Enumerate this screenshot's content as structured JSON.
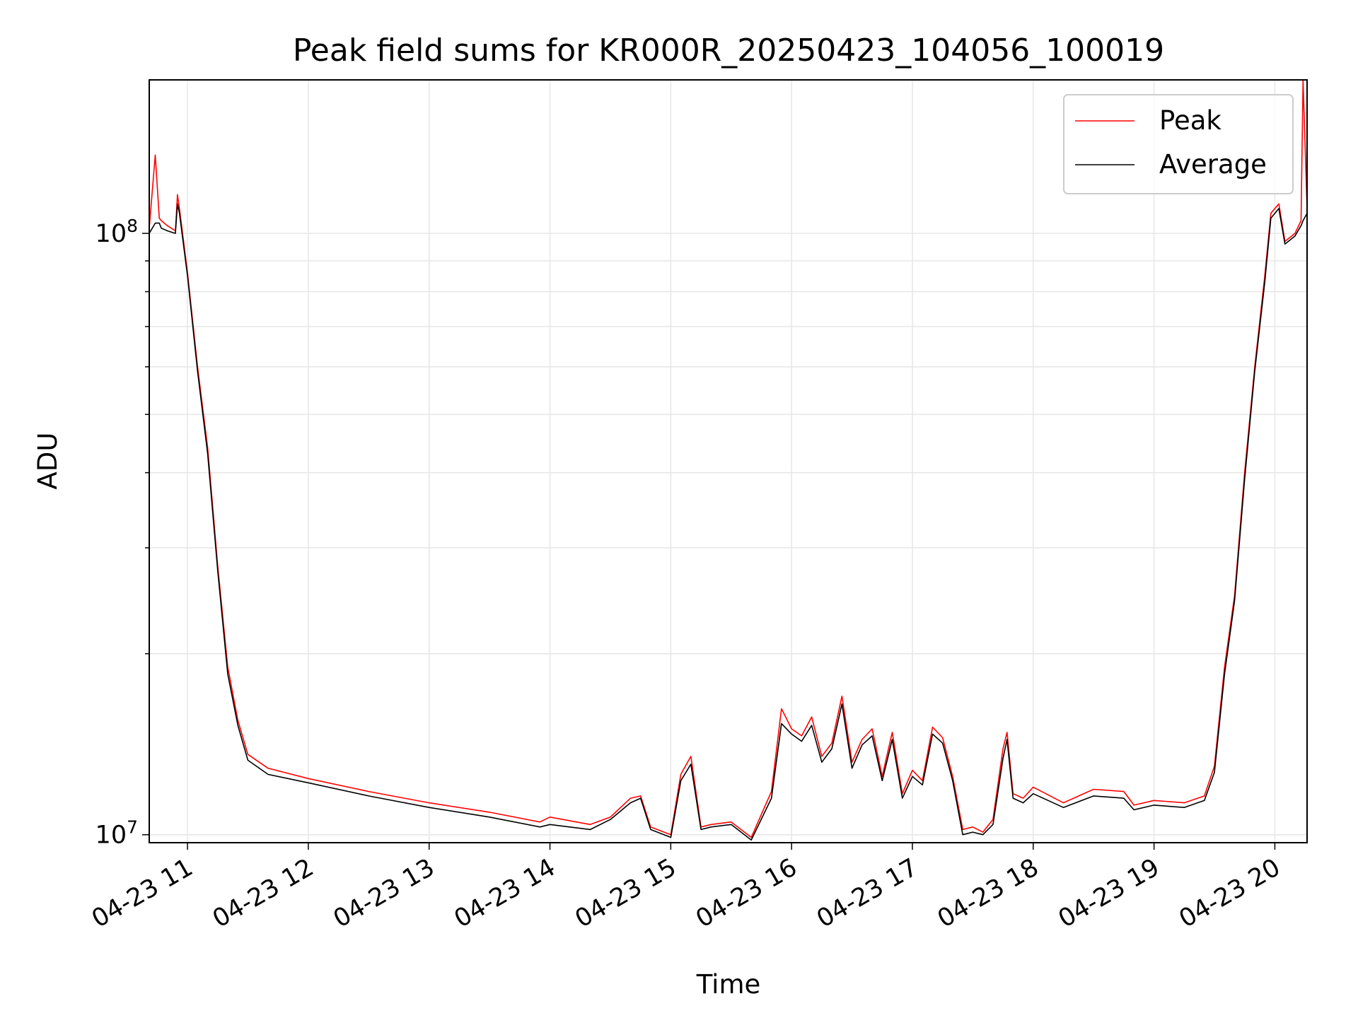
{
  "chart_data": {
    "type": "line",
    "title": "Peak field sums for KR000R_20250423_104056_100019",
    "xlabel": "Time",
    "ylabel": "ADU",
    "x_type": "time",
    "xlim": [
      "2025-04-23 10:41",
      "2025-04-23 20:16"
    ],
    "ylim": [
      9700000,
      180000000
    ],
    "y_scale": "log",
    "grid": true,
    "legend": "top-right",
    "x_ticks": [
      {
        "t": "2025-04-23 11:00",
        "label": "04-23 11"
      },
      {
        "t": "2025-04-23 12:00",
        "label": "04-23 12"
      },
      {
        "t": "2025-04-23 13:00",
        "label": "04-23 13"
      },
      {
        "t": "2025-04-23 14:00",
        "label": "04-23 14"
      },
      {
        "t": "2025-04-23 15:00",
        "label": "04-23 15"
      },
      {
        "t": "2025-04-23 16:00",
        "label": "04-23 16"
      },
      {
        "t": "2025-04-23 17:00",
        "label": "04-23 17"
      },
      {
        "t": "2025-04-23 18:00",
        "label": "04-23 18"
      },
      {
        "t": "2025-04-23 19:00",
        "label": "04-23 19"
      },
      {
        "t": "2025-04-23 20:00",
        "label": "04-23 20"
      }
    ],
    "y_major_ticks": [
      {
        "value": 10000000,
        "label": "10^7"
      },
      {
        "value": 100000000,
        "label": "10^8"
      }
    ],
    "series": [
      {
        "name": "Peak",
        "color": "#ff0000",
        "x": [
          "2025-04-23 10:41",
          "2025-04-23 10:44",
          "2025-04-23 10:46",
          "2025-04-23 10:47",
          "2025-04-23 10:50",
          "2025-04-23 10:54",
          "2025-04-23 10:55",
          "2025-04-23 10:56",
          "2025-04-23 11:00",
          "2025-04-23 11:05",
          "2025-04-23 11:10",
          "2025-04-23 11:15",
          "2025-04-23 11:20",
          "2025-04-23 11:25",
          "2025-04-23 11:30",
          "2025-04-23 11:40",
          "2025-04-23 12:00",
          "2025-04-23 12:30",
          "2025-04-23 13:00",
          "2025-04-23 13:30",
          "2025-04-23 13:55",
          "2025-04-23 14:00",
          "2025-04-23 14:20",
          "2025-04-23 14:30",
          "2025-04-23 14:40",
          "2025-04-23 14:45",
          "2025-04-23 14:50",
          "2025-04-23 15:00",
          "2025-04-23 15:05",
          "2025-04-23 15:10",
          "2025-04-23 15:15",
          "2025-04-23 15:20",
          "2025-04-23 15:30",
          "2025-04-23 15:40",
          "2025-04-23 15:50",
          "2025-04-23 15:55",
          "2025-04-23 16:00",
          "2025-04-23 16:05",
          "2025-04-23 16:10",
          "2025-04-23 16:15",
          "2025-04-23 16:20",
          "2025-04-23 16:25",
          "2025-04-23 16:30",
          "2025-04-23 16:35",
          "2025-04-23 16:40",
          "2025-04-23 16:45",
          "2025-04-23 16:50",
          "2025-04-23 16:55",
          "2025-04-23 17:00",
          "2025-04-23 17:05",
          "2025-04-23 17:10",
          "2025-04-23 17:15",
          "2025-04-23 17:20",
          "2025-04-23 17:25",
          "2025-04-23 17:30",
          "2025-04-23 17:35",
          "2025-04-23 17:40",
          "2025-04-23 17:45",
          "2025-04-23 17:47",
          "2025-04-23 17:50",
          "2025-04-23 17:55",
          "2025-04-23 18:00",
          "2025-04-23 18:15",
          "2025-04-23 18:30",
          "2025-04-23 18:45",
          "2025-04-23 18:50",
          "2025-04-23 19:00",
          "2025-04-23 19:15",
          "2025-04-23 19:25",
          "2025-04-23 19:30",
          "2025-04-23 19:35",
          "2025-04-23 19:40",
          "2025-04-23 19:45",
          "2025-04-23 19:50",
          "2025-04-23 19:55",
          "2025-04-23 19:58",
          "2025-04-23 20:02",
          "2025-04-23 20:05",
          "2025-04-23 20:10",
          "2025-04-23 20:13",
          "2025-04-23 20:14",
          "2025-04-23 20:16"
        ],
        "y": [
          102000000,
          135000000,
          106000000,
          105000000,
          103000000,
          101000000,
          116000000,
          110000000,
          86000000,
          60000000,
          44000000,
          28000000,
          19000000,
          15500000,
          13600000,
          12900000,
          12400000,
          11800000,
          11300000,
          10900000,
          10500000,
          10700000,
          10400000,
          10700000,
          11500000,
          11600000,
          10300000,
          10000000,
          12600000,
          13500000,
          10300000,
          10400000,
          10500000,
          9900000,
          11800000,
          16200000,
          15000000,
          14600000,
          15700000,
          13500000,
          14200000,
          17000000,
          13200000,
          14400000,
          15000000,
          12500000,
          14800000,
          11700000,
          12800000,
          12300000,
          15100000,
          14500000,
          12500000,
          10200000,
          10300000,
          10100000,
          10600000,
          13900000,
          14800000,
          11700000,
          11500000,
          12000000,
          11300000,
          11900000,
          11800000,
          11200000,
          11400000,
          11300000,
          11600000,
          13000000,
          19000000,
          25000000,
          40000000,
          60000000,
          85000000,
          108000000,
          112000000,
          97000000,
          100000000,
          105000000,
          180000000,
          110000000
        ]
      },
      {
        "name": "Average",
        "color": "#000000",
        "x": [
          "2025-04-23 10:41",
          "2025-04-23 10:44",
          "2025-04-23 10:46",
          "2025-04-23 10:47",
          "2025-04-23 10:50",
          "2025-04-23 10:54",
          "2025-04-23 10:55",
          "2025-04-23 10:56",
          "2025-04-23 11:00",
          "2025-04-23 11:05",
          "2025-04-23 11:10",
          "2025-04-23 11:15",
          "2025-04-23 11:20",
          "2025-04-23 11:25",
          "2025-04-23 11:30",
          "2025-04-23 11:40",
          "2025-04-23 12:00",
          "2025-04-23 12:30",
          "2025-04-23 13:00",
          "2025-04-23 13:30",
          "2025-04-23 13:55",
          "2025-04-23 14:00",
          "2025-04-23 14:20",
          "2025-04-23 14:30",
          "2025-04-23 14:40",
          "2025-04-23 14:45",
          "2025-04-23 14:50",
          "2025-04-23 15:00",
          "2025-04-23 15:05",
          "2025-04-23 15:10",
          "2025-04-23 15:15",
          "2025-04-23 15:20",
          "2025-04-23 15:30",
          "2025-04-23 15:40",
          "2025-04-23 15:50",
          "2025-04-23 15:55",
          "2025-04-23 16:00",
          "2025-04-23 16:05",
          "2025-04-23 16:10",
          "2025-04-23 16:15",
          "2025-04-23 16:20",
          "2025-04-23 16:25",
          "2025-04-23 16:30",
          "2025-04-23 16:35",
          "2025-04-23 16:40",
          "2025-04-23 16:45",
          "2025-04-23 16:50",
          "2025-04-23 16:55",
          "2025-04-23 17:00",
          "2025-04-23 17:05",
          "2025-04-23 17:10",
          "2025-04-23 17:15",
          "2025-04-23 17:20",
          "2025-04-23 17:25",
          "2025-04-23 17:30",
          "2025-04-23 17:35",
          "2025-04-23 17:40",
          "2025-04-23 17:45",
          "2025-04-23 17:47",
          "2025-04-23 17:50",
          "2025-04-23 17:55",
          "2025-04-23 18:00",
          "2025-04-23 18:15",
          "2025-04-23 18:30",
          "2025-04-23 18:45",
          "2025-04-23 18:50",
          "2025-04-23 19:00",
          "2025-04-23 19:15",
          "2025-04-23 19:25",
          "2025-04-23 19:30",
          "2025-04-23 19:35",
          "2025-04-23 19:40",
          "2025-04-23 19:45",
          "2025-04-23 19:50",
          "2025-04-23 19:55",
          "2025-04-23 19:58",
          "2025-04-23 20:02",
          "2025-04-23 20:05",
          "2025-04-23 20:10",
          "2025-04-23 20:13",
          "2025-04-23 20:14",
          "2025-04-23 20:16"
        ],
        "y": [
          100000000,
          104000000,
          104000000,
          102000000,
          101000000,
          100000000,
          112000000,
          108000000,
          85000000,
          59000000,
          43000000,
          27500000,
          18500000,
          15200000,
          13300000,
          12600000,
          12200000,
          11600000,
          11100000,
          10700000,
          10300000,
          10400000,
          10200000,
          10600000,
          11300000,
          11500000,
          10200000,
          9900000,
          12300000,
          13100000,
          10200000,
          10300000,
          10400000,
          9800000,
          11500000,
          15300000,
          14700000,
          14300000,
          15200000,
          13200000,
          13900000,
          16500000,
          12900000,
          14100000,
          14600000,
          12300000,
          14400000,
          11500000,
          12500000,
          12100000,
          14700000,
          14200000,
          12300000,
          10000000,
          10100000,
          10000000,
          10400000,
          13400000,
          14400000,
          11500000,
          11300000,
          11700000,
          11100000,
          11600000,
          11500000,
          11000000,
          11200000,
          11100000,
          11400000,
          12700000,
          18500000,
          24500000,
          39000000,
          59000000,
          83000000,
          106000000,
          110000000,
          96000000,
          99000000,
          103000000,
          105000000,
          108000000
        ]
      }
    ]
  }
}
